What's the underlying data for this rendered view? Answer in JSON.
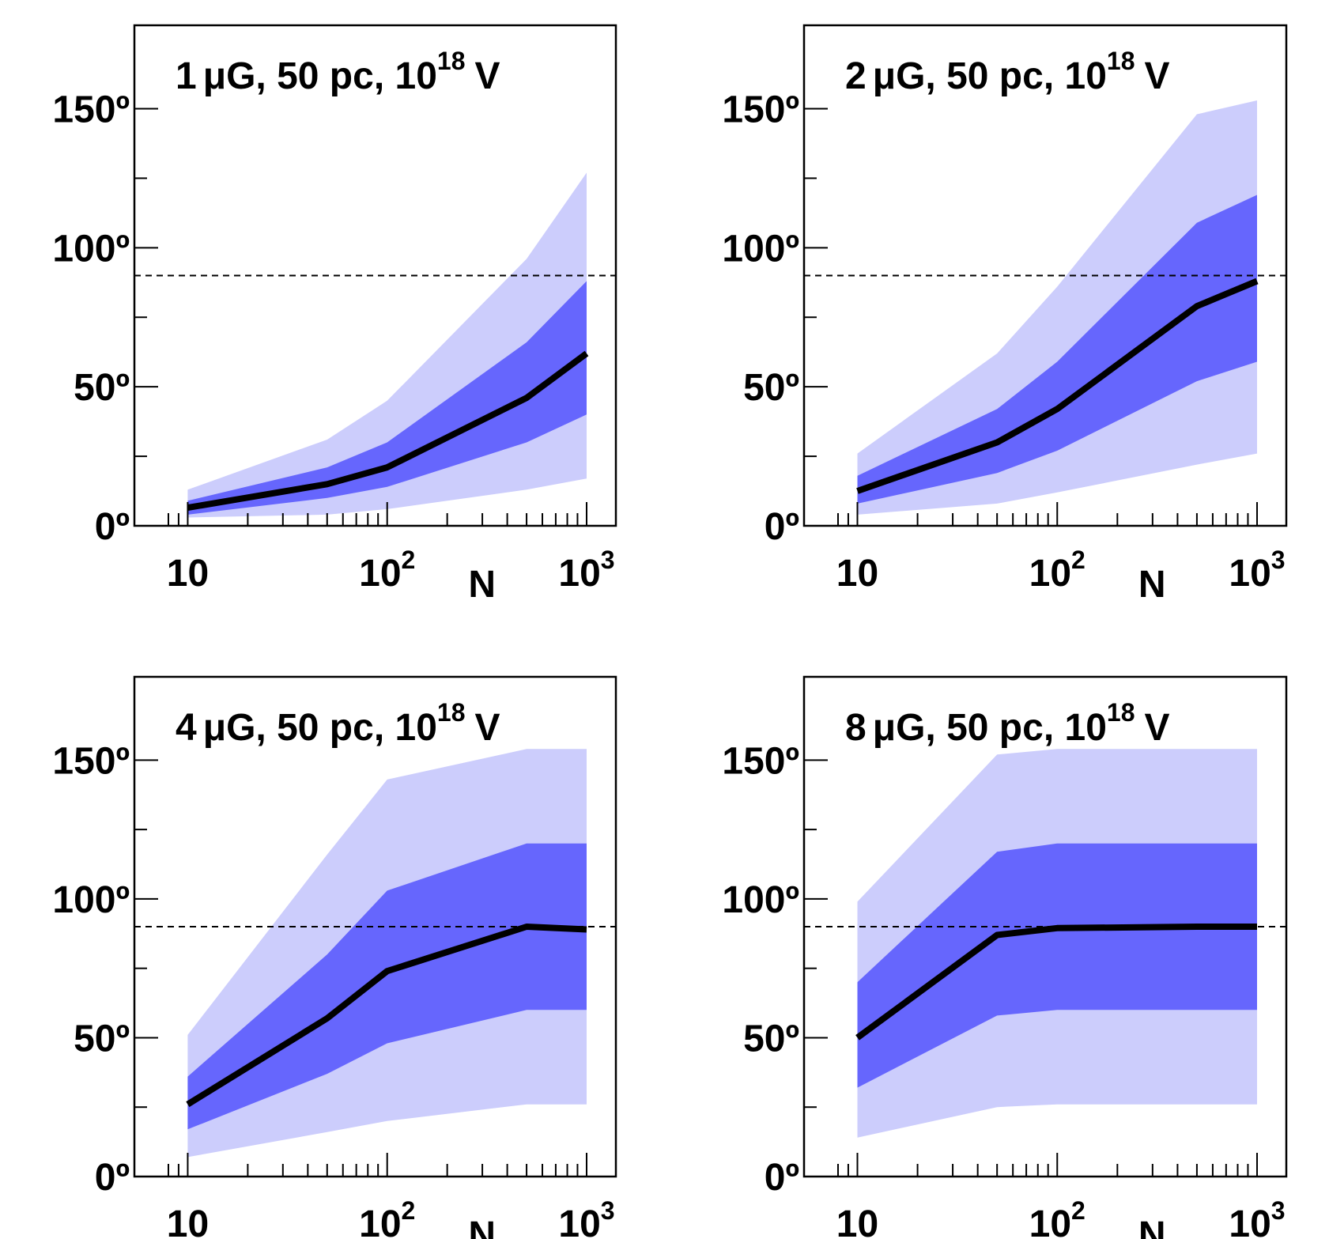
{
  "chart_data": [
    {
      "type": "area",
      "title": "1 μG, 50 pc, 10^18 V",
      "title_parts": {
        "prefix": "1",
        "unit": "μG, 50 pc, 10",
        "exponent": "18",
        "suffix": "V"
      },
      "xlabel": "N",
      "x_scale": "log",
      "xlim": [
        8,
        1000
      ],
      "ylim": [
        0,
        180
      ],
      "x_tick_labels": [
        {
          "base": "10",
          "exp": ""
        },
        {
          "base": "10",
          "exp": "2"
        },
        {
          "base": "10",
          "exp": "3"
        }
      ],
      "y_tick_labels": [
        "0º",
        "50º",
        "100º",
        "150º"
      ],
      "reference_line": {
        "y": 90,
        "style": "dashed"
      },
      "x": [
        10,
        50,
        100,
        500,
        1000
      ],
      "outer_band": {
        "lower": [
          3,
          4,
          6,
          13,
          17
        ],
        "upper": [
          13,
          31,
          45,
          96,
          127
        ]
      },
      "inner_band": {
        "lower": [
          4,
          10,
          14,
          30,
          40
        ],
        "upper": [
          9,
          21,
          30,
          66,
          88
        ]
      },
      "median": [
        6.5,
        15,
        21,
        46,
        62
      ],
      "colors": {
        "outer": "#cccdfc",
        "inner": "#6666fd",
        "median": "#000000"
      }
    },
    {
      "type": "area",
      "title": "2 μG, 50 pc, 10^18 V",
      "title_parts": {
        "prefix": "2",
        "unit": "μG, 50 pc, 10",
        "exponent": "18",
        "suffix": "V"
      },
      "xlabel": "N",
      "x_scale": "log",
      "xlim": [
        8,
        1000
      ],
      "ylim": [
        0,
        180
      ],
      "x_tick_labels": [
        {
          "base": "10",
          "exp": ""
        },
        {
          "base": "10",
          "exp": "2"
        },
        {
          "base": "10",
          "exp": "3"
        }
      ],
      "y_tick_labels": [
        "0º",
        "50º",
        "100º",
        "150º"
      ],
      "reference_line": {
        "y": 90,
        "style": "dashed"
      },
      "x": [
        10,
        50,
        100,
        500,
        1000
      ],
      "outer_band": {
        "lower": [
          4,
          8,
          12,
          22,
          26
        ],
        "upper": [
          26,
          62,
          86,
          148,
          153
        ]
      },
      "inner_band": {
        "lower": [
          8,
          19,
          27,
          52,
          59
        ],
        "upper": [
          18,
          42,
          59,
          109,
          119
        ]
      },
      "median": [
        12.5,
        30,
        42,
        79,
        88
      ],
      "colors": {
        "outer": "#cccdfc",
        "inner": "#6666fd",
        "median": "#000000"
      }
    },
    {
      "type": "area",
      "title": "4 μG, 50 pc, 10^18 V",
      "title_parts": {
        "prefix": "4",
        "unit": "μG, 50 pc, 10",
        "exponent": "18",
        "suffix": "V"
      },
      "xlabel": "N",
      "x_scale": "log",
      "xlim": [
        8,
        1000
      ],
      "ylim": [
        0,
        180
      ],
      "x_tick_labels": [
        {
          "base": "10",
          "exp": ""
        },
        {
          "base": "10",
          "exp": "2"
        },
        {
          "base": "10",
          "exp": "3"
        }
      ],
      "y_tick_labels": [
        "0º",
        "50º",
        "100º",
        "150º"
      ],
      "reference_line": {
        "y": 90,
        "style": "dashed"
      },
      "x": [
        10,
        50,
        100,
        500,
        1000
      ],
      "outer_band": {
        "lower": [
          7,
          16,
          20,
          26,
          26
        ],
        "upper": [
          51,
          116,
          143,
          154,
          154
        ]
      },
      "inner_band": {
        "lower": [
          17,
          37,
          48,
          60,
          60
        ],
        "upper": [
          36,
          80,
          103,
          120,
          120
        ]
      },
      "median": [
        26,
        57,
        74,
        90,
        89
      ],
      "colors": {
        "outer": "#cccdfc",
        "inner": "#6666fd",
        "median": "#000000"
      }
    },
    {
      "type": "area",
      "title": "8 μG, 50 pc, 10^18 V",
      "title_parts": {
        "prefix": "8",
        "unit": "μG, 50 pc, 10",
        "exponent": "18",
        "suffix": "V"
      },
      "xlabel": "N",
      "x_scale": "log",
      "xlim": [
        8,
        1000
      ],
      "ylim": [
        0,
        180
      ],
      "x_tick_labels": [
        {
          "base": "10",
          "exp": ""
        },
        {
          "base": "10",
          "exp": "2"
        },
        {
          "base": "10",
          "exp": "3"
        }
      ],
      "y_tick_labels": [
        "0º",
        "50º",
        "100º",
        "150º"
      ],
      "reference_line": {
        "y": 90,
        "style": "dashed"
      },
      "x": [
        10,
        50,
        100,
        500,
        1000
      ],
      "outer_band": {
        "lower": [
          14,
          25,
          26,
          26,
          26
        ],
        "upper": [
          99,
          152,
          154,
          154,
          154
        ]
      },
      "inner_band": {
        "lower": [
          32,
          58,
          60,
          60,
          60
        ],
        "upper": [
          70,
          117,
          120,
          120,
          120
        ]
      },
      "median": [
        50,
        87,
        89.5,
        90,
        90
      ],
      "colors": {
        "outer": "#cccdfc",
        "inner": "#6666fd",
        "median": "#000000"
      }
    }
  ]
}
